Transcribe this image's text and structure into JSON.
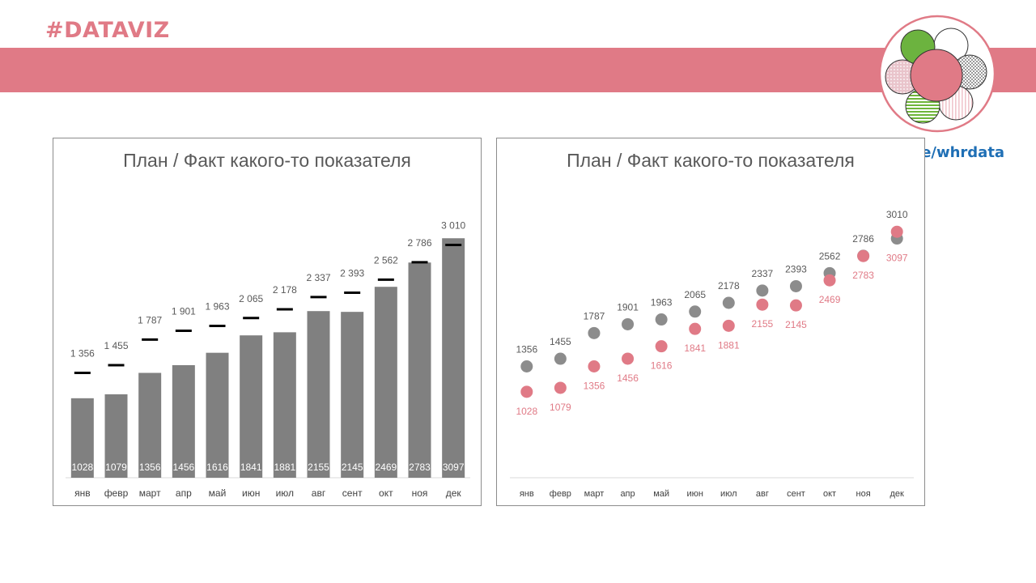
{
  "header": {
    "tag": "#DATAVIZ",
    "link": "t.me/whrdata"
  },
  "colors": {
    "accent": "#e07a86",
    "bar": "#808080",
    "plan_marker": "#000000",
    "plan_dot": "#8c8c8c",
    "fact_dot": "#e07a86",
    "link": "#1f6fb5"
  },
  "logo_icon": "flower-of-circles-logo",
  "chart_data": [
    {
      "type": "bar",
      "title": "План / Факт какого-то показателя",
      "categories": [
        "янв",
        "февр",
        "март",
        "апр",
        "май",
        "июн",
        "июл",
        "авг",
        "сент",
        "окт",
        "ноя",
        "дек"
      ],
      "series": [
        {
          "name": "Факт",
          "values": [
            1028,
            1079,
            1356,
            1456,
            1616,
            1841,
            1881,
            2155,
            2145,
            2469,
            2783,
            3097
          ],
          "labels": [
            "1028",
            "1079",
            "1356",
            "1456",
            "1616",
            "1841",
            "1881",
            "2155",
            "2145",
            "2469",
            "2783",
            "3097"
          ]
        },
        {
          "name": "План",
          "values": [
            1356,
            1455,
            1787,
            1901,
            1963,
            2065,
            2178,
            2337,
            2393,
            2562,
            2786,
            3010
          ],
          "labels": [
            "1 356",
            "1 455",
            "1 787",
            "1 901",
            "1 963",
            "2 065",
            "2 178",
            "2 337",
            "2 393",
            "2 562",
            "2 786",
            "3 010"
          ]
        }
      ],
      "ylim": [
        0,
        3500
      ],
      "xlabel": "",
      "ylabel": ""
    },
    {
      "type": "scatter",
      "title": "План / Факт какого-то показателя",
      "categories": [
        "янв",
        "февр",
        "март",
        "апр",
        "май",
        "июн",
        "июл",
        "авг",
        "сент",
        "окт",
        "ноя",
        "дек"
      ],
      "series": [
        {
          "name": "План",
          "values": [
            1356,
            1455,
            1787,
            1901,
            1963,
            2065,
            2178,
            2337,
            2393,
            2562,
            2786,
            3010
          ],
          "labels": [
            "1356",
            "1455",
            "1787",
            "1901",
            "1963",
            "2065",
            "2178",
            "2337",
            "2393",
            "2562",
            "2786",
            "3010"
          ]
        },
        {
          "name": "Факт",
          "values": [
            1028,
            1079,
            1356,
            1456,
            1616,
            1841,
            1881,
            2155,
            2145,
            2469,
            2783,
            3097
          ],
          "labels": [
            "1028",
            "1079",
            "1356",
            "1456",
            "1616",
            "1841",
            "1881",
            "2155",
            "2145",
            "2469",
            "2783",
            "3097"
          ]
        }
      ],
      "ylim": [
        0,
        3500
      ],
      "xlabel": "",
      "ylabel": ""
    }
  ]
}
